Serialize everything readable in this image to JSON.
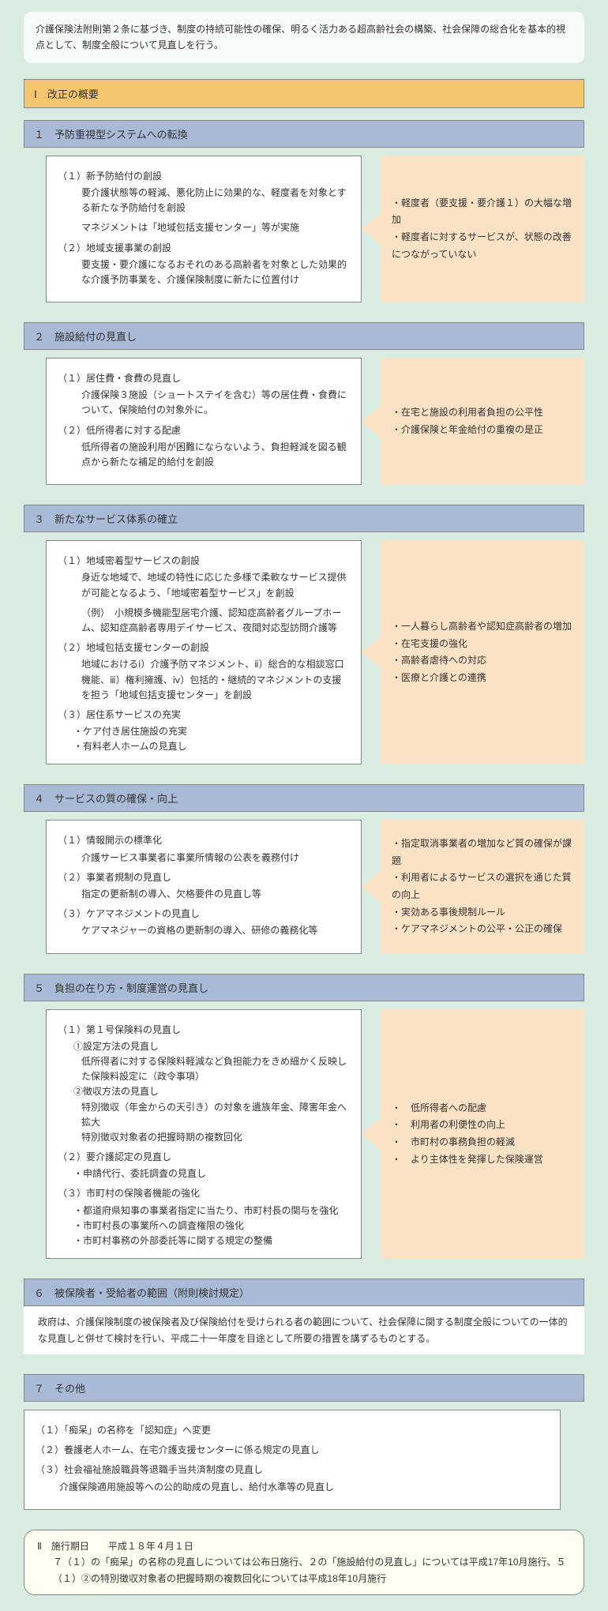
{
  "intro": "介護保険法附則第２条に基づき、制度の持続可能性の確保、明るく活力ある超高齢社会の構築、社会保障の総合化を基本的視点として、制度全般について見直しを行う。",
  "overview_header": "Ⅰ　改正の概要",
  "sections": [
    {
      "title": "１　予防重視型システムへの転換",
      "left_width": 400,
      "left_inset": true,
      "left": [
        {
          "h": "（１）新予防給付の創設"
        },
        {
          "p": "要介護状態等の軽減、悪化防止に効果的な、軽度者を対象とする新たな予防給付を創設"
        },
        {
          "p": "マネジメントは「地域包括支援センター」等が実施"
        },
        {
          "h": "（２）地域支援事業の創設"
        },
        {
          "p": "要支援・要介護になるおそれのある高齢者を対象とした効果的な介護予防事業を、介護保険制度に新たに位置付け"
        }
      ],
      "right": [
        "・軽度者（要支援・要介護１）の大幅な増加",
        "・軽度者に対するサービスが、状態の改善につながっていない"
      ]
    },
    {
      "title": "２　施設給付の見直し",
      "left_width": 400,
      "left_inset": true,
      "left": [
        {
          "h": "（１）居住費・食費の見直し"
        },
        {
          "p": "介護保険３施設（ショートステイを含む）等の居住費・食費について、保険給付の対象外に。"
        },
        {
          "h": "（２）低所得者に対する配慮"
        },
        {
          "p": "低所得者の施設利用が困難にならないよう、負担軽減を図る観点から新たな補足的給付を創設"
        }
      ],
      "right": [
        "・在宅と施設の利用者負担の公平性",
        "・介護保険と年金給付の重複の是正"
      ]
    },
    {
      "title": "３　新たなサービス体系の確立",
      "left_width": 400,
      "left_inset": true,
      "left": [
        {
          "h": "（１）地域密着型サービスの創設"
        },
        {
          "p": "身近な地域で、地域の特性に応じた多様で柔軟なサービス提供が可能となるよう、「地域密着型サービス」を創設"
        },
        {
          "p": "（例）　小規模多機能型居宅介護、認知症高齢者グループホーム、認知症高齢者専用デイサービス、夜間対応型訪問介護等"
        },
        {
          "h": "（２）地域包括支援センターの創設"
        },
        {
          "p": "地域におけるⅰ）介護予防マネジメント、ⅱ）総合的な相談窓口機能、ⅲ）権利擁護、ⅳ）包括的・継続的マネジメントの支援を担う「地域包括支援センター」を創設"
        },
        {
          "h": "（３）居住系サービスの充実"
        },
        {
          "b": "・ケア付き居住施設の充実"
        },
        {
          "b": "・有料老人ホームの見直し"
        }
      ],
      "right": [
        "・一人暮らし高齢者や認知症高齢者の増加",
        "・在宅支援の強化",
        "・高齢者虐待への対応",
        "・医療と介護との連携"
      ]
    },
    {
      "title": "４　サービスの質の確保・向上",
      "left_width": 400,
      "left_inset": true,
      "left": [
        {
          "h": "（１）情報開示の標準化"
        },
        {
          "p": "介護サービス事業者に事業所情報の公表を義務付け"
        },
        {
          "h": "（２）事業者規制の見直し"
        },
        {
          "p": "指定の更新制の導入、欠格要件の見直し等"
        },
        {
          "h": "（３）ケアマネジメントの見直し"
        },
        {
          "p": "ケアマネジャーの資格の更新制の導入、研修の義務化等"
        }
      ],
      "right": [
        "・指定取消事業者の増加など質の確保が課題",
        "・利用者によるサービスの選択を通じた質の向上",
        "・実効ある事後規制ルール",
        "・ケアマネジメントの公平・公正の確保"
      ]
    },
    {
      "title": "５　負担の在り方・制度運営の見直し",
      "left_width": 400,
      "left_inset": true,
      "left": [
        {
          "h": "（１）第１号保険料の見直し"
        },
        {
          "s": "①設定方法の見直し"
        },
        {
          "s2": "低所得者に対する保険料軽減など負担能力をきめ細かく反映した保険料設定に（政令事項）"
        },
        {
          "s": "②徴収方法の見直し"
        },
        {
          "s2": "特別徴収（年金からの天引き）の対象を遺族年金、障害年金へ拡大"
        },
        {
          "s2": "特別徴収対象者の把握時期の複数回化"
        },
        {
          "h": "（２）要介護認定の見直し"
        },
        {
          "b": "・申請代行、委託調査の見直し"
        },
        {
          "h": "（３）市町村の保険者機能の強化"
        },
        {
          "b": "・都道府県知事の事業者指定に当たり、市町村長の関与を強化"
        },
        {
          "b": "・市町村長の事業所への調査権限の強化"
        },
        {
          "b": "・市町村事務の外部委託等に関する規定の整備"
        }
      ],
      "right": [
        "・　低所得者への配慮",
        "・　利用者の利便性の向上",
        "・　市町村の事務負担の軽減",
        "・　より主体性を発揮した保険運営"
      ]
    },
    {
      "title": "６　被保険者・受給者の範囲（附則検討規定）",
      "plain": "政府は、介護保険制度の被保険者及び保険給付を受けられる者の範囲について、社会保障に関する制度全般についての一体的な見直しと併せて検討を行い、平成二十一年度を目途として所要の措置を講ずるものとする。"
    },
    {
      "title": "７　その他",
      "left_width": 680,
      "left_inset": false,
      "left": [
        {
          "h": "（１）「痴呆」の名称を「認知症」へ変更"
        },
        {
          "h": "（２）養護老人ホーム、在宅介護支援センターに係る規定の見直し"
        },
        {
          "h": "（３）社会福祉施設職員等退職手当共済制度の見直し"
        },
        {
          "p": "介護保険適用施設等への公的助成の見直し、給付水準等の見直し"
        }
      ]
    }
  ],
  "footer_title": "Ⅱ　施行期日　　平成１８年４月１日",
  "footer_body": "７（１）の「痴呆」の名称の見直しについては公布日施行、２の「施設給付の見直し」については平成17年10月施行、５（１）②の特別徴収対象者の把握時期の複数回化については平成18年10月施行",
  "colors": {
    "page_bg": "#d8ece2",
    "intro_bg": "#f7fbf8",
    "orange_header_bg": "#f5c670",
    "blue_bar_bg": "#a9bad6",
    "white_box_bg": "#ffffff",
    "right_box_bg": "#fce2c4",
    "footer_bg": "#fffef0",
    "arrow_fill": "#fce2c4",
    "border": "#888888"
  }
}
